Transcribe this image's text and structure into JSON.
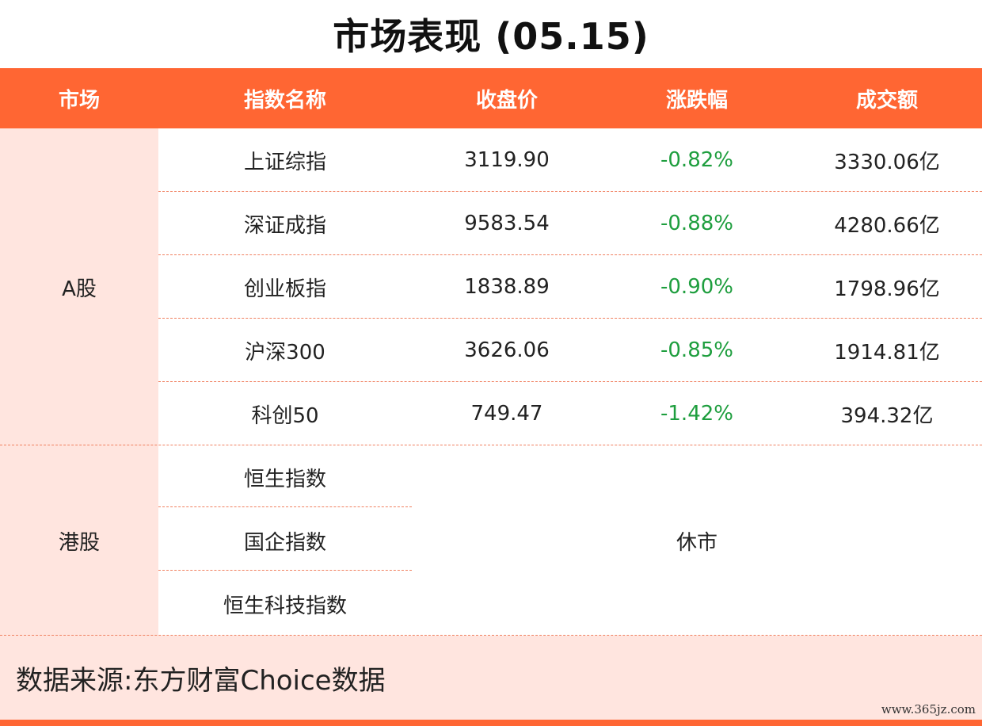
{
  "title": "市场表现 (05.15)",
  "colors": {
    "accent": "#ff6633",
    "tint": "#ffe5df",
    "down": "#1e9e3e"
  },
  "headers": [
    "市场",
    "指数名称",
    "收盘价",
    "涨跌幅",
    "成交额"
  ],
  "groups": [
    {
      "market": "A股",
      "rows": [
        {
          "name": "上证综指",
          "close": "3119.90",
          "change": "-0.82%",
          "turnover": "3330.06亿"
        },
        {
          "name": "深证成指",
          "close": "9583.54",
          "change": "-0.88%",
          "turnover": "4280.66亿"
        },
        {
          "name": "创业板指",
          "close": "1838.89",
          "change": "-0.90%",
          "turnover": "1798.96亿"
        },
        {
          "name": "沪深300",
          "close": "3626.06",
          "change": "-0.85%",
          "turnover": "1914.81亿"
        },
        {
          "name": "科创50",
          "close": "749.47",
          "change": "-1.42%",
          "turnover": "394.32亿"
        }
      ]
    },
    {
      "market": "港股",
      "rows": [
        {
          "name": "恒生指数"
        },
        {
          "name": "国企指数"
        },
        {
          "name": "恒生科技指数"
        }
      ],
      "status": "休市"
    }
  ],
  "source": "数据来源:东方财富Choice数据",
  "watermark": "www.365jz.com"
}
